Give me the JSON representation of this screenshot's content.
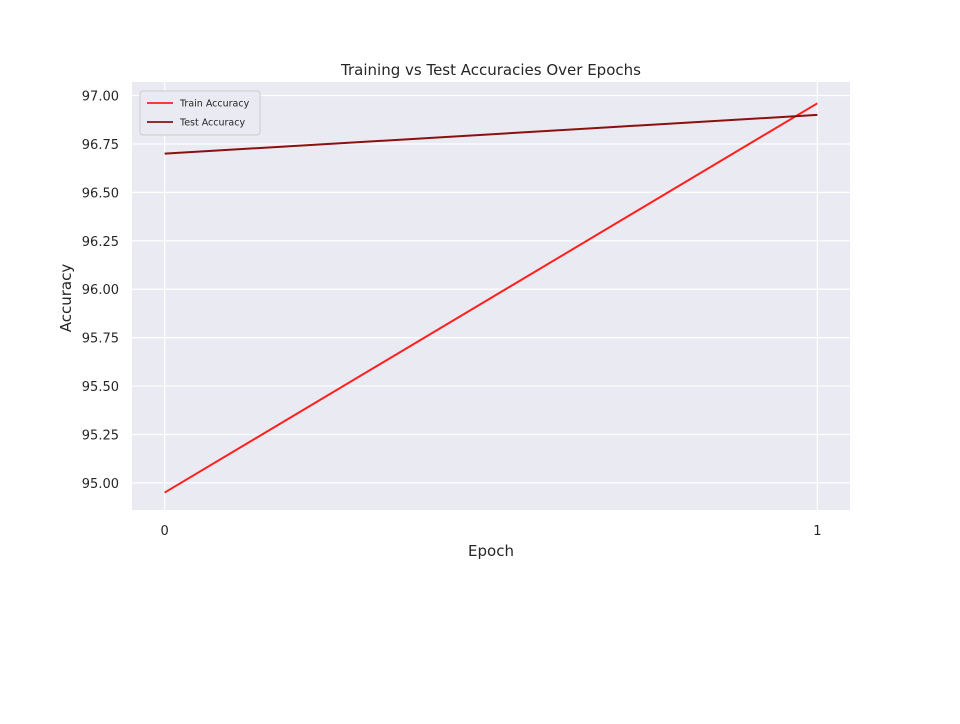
{
  "chart_data": {
    "type": "line",
    "title": "Training vs Test Accuracies Over Epochs",
    "xlabel": "Epoch",
    "ylabel": "Accuracy",
    "x": [
      0,
      1
    ],
    "xticks": [
      "0",
      "1"
    ],
    "yticks": [
      "95.00",
      "95.25",
      "95.50",
      "95.75",
      "96.00",
      "96.25",
      "96.50",
      "96.75",
      "97.00"
    ],
    "xlim": [
      -0.05,
      1.05
    ],
    "ylim": [
      94.86,
      97.07
    ],
    "grid": true,
    "legend_position": "top-left",
    "series": [
      {
        "name": "Train Accuracy",
        "values": [
          94.95,
          96.96
        ],
        "color": "#ff2020"
      },
      {
        "name": "Test Accuracy",
        "values": [
          96.7,
          96.9
        ],
        "color": "#8b1010"
      }
    ]
  }
}
